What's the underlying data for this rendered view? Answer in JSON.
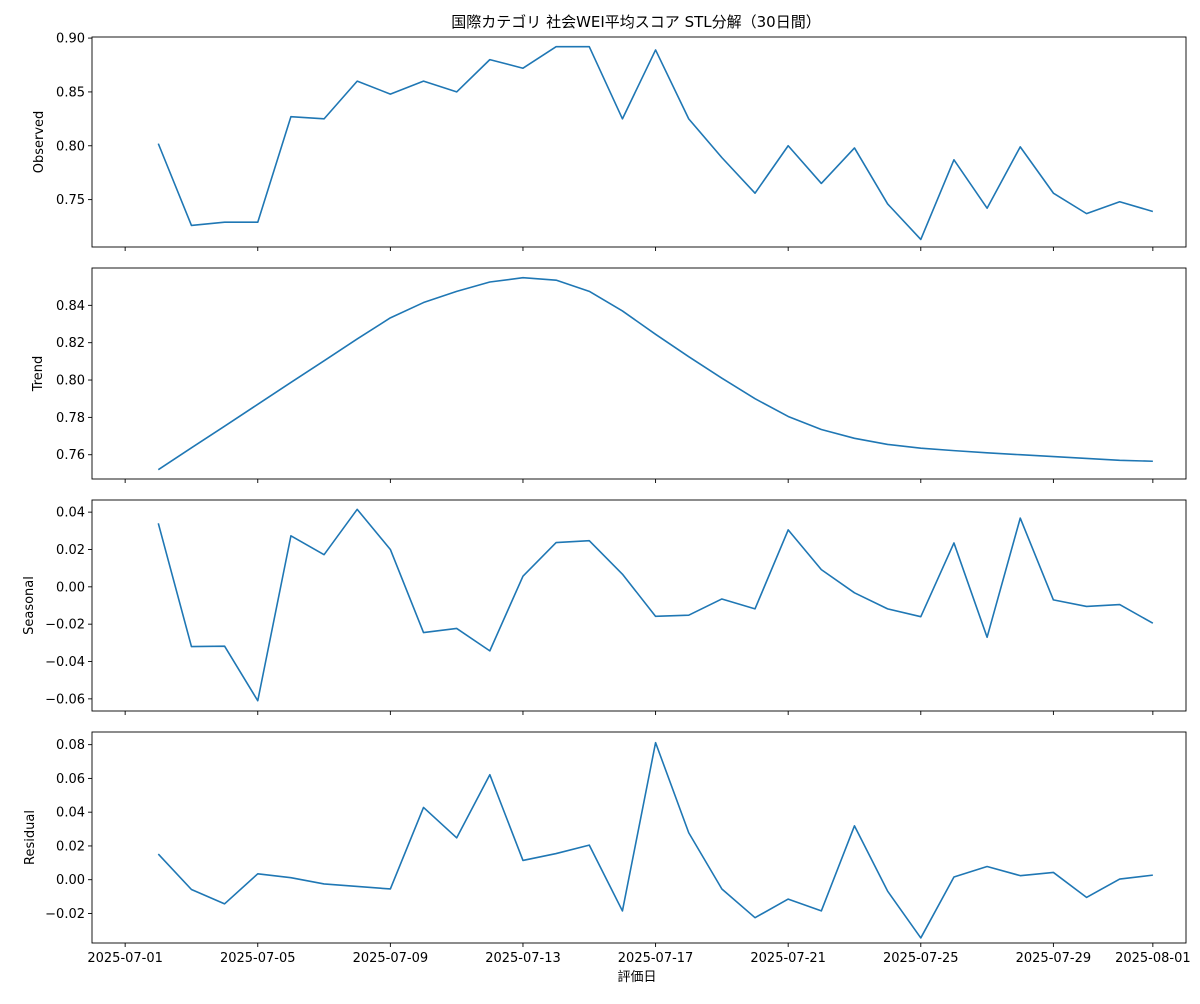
{
  "chart_data": {
    "type": "line",
    "title": "国際カテゴリ 社会WEI平均スコア STL分解（30日間）",
    "xlabel": "評価日",
    "line_color": "#1f77b4",
    "x": [
      "2025-07-02",
      "2025-07-03",
      "2025-07-04",
      "2025-07-05",
      "2025-07-06",
      "2025-07-07",
      "2025-07-08",
      "2025-07-09",
      "2025-07-10",
      "2025-07-11",
      "2025-07-12",
      "2025-07-13",
      "2025-07-14",
      "2025-07-15",
      "2025-07-16",
      "2025-07-17",
      "2025-07-18",
      "2025-07-19",
      "2025-07-20",
      "2025-07-21",
      "2025-07-22",
      "2025-07-23",
      "2025-07-24",
      "2025-07-25",
      "2025-07-26",
      "2025-07-27",
      "2025-07-28",
      "2025-07-29",
      "2025-07-30",
      "2025-07-31",
      "2025-08-01"
    ],
    "x_ticks": [
      "2025-07-01",
      "2025-07-05",
      "2025-07-09",
      "2025-07-13",
      "2025-07-17",
      "2025-07-21",
      "2025-07-25",
      "2025-07-29",
      "2025-08-01"
    ],
    "xlim": [
      "2025-06-30",
      "2025-08-02"
    ],
    "panels": [
      {
        "ylabel": "Observed",
        "ylim": [
          0.706,
          0.901
        ],
        "y_ticks": [
          "0.75",
          "0.80",
          "0.85",
          "0.90"
        ],
        "values": [
          0.802,
          0.726,
          0.729,
          0.729,
          0.827,
          0.825,
          0.86,
          0.848,
          0.86,
          0.85,
          0.88,
          0.872,
          0.892,
          0.892,
          0.825,
          0.889,
          0.825,
          0.789,
          0.756,
          0.8,
          0.765,
          0.798,
          0.746,
          0.713,
          0.787,
          0.742,
          0.799,
          0.756,
          0.737,
          0.748,
          0.739
        ]
      },
      {
        "ylabel": "Trend",
        "ylim": [
          0.747,
          0.86
        ],
        "y_ticks": [
          "0.76",
          "0.78",
          "0.80",
          "0.82",
          "0.84"
        ],
        "values": [
          0.752,
          0.7637,
          0.7753,
          0.787,
          0.7987,
          0.8103,
          0.822,
          0.8333,
          0.8415,
          0.8475,
          0.8525,
          0.8548,
          0.8535,
          0.8475,
          0.837,
          0.8245,
          0.8125,
          0.801,
          0.79,
          0.7805,
          0.7735,
          0.7688,
          0.7655,
          0.7635,
          0.7622,
          0.761,
          0.76,
          0.759,
          0.758,
          0.757,
          0.7565
        ]
      },
      {
        "ylabel": "Seasonal",
        "ylim": [
          -0.0665,
          0.0465
        ],
        "y_ticks": [
          "0.04",
          "0.02",
          "0.00",
          "−0.02",
          "−0.04",
          "−0.06"
        ],
        "values": [
          0.034,
          -0.032,
          -0.0318,
          -0.061,
          0.0273,
          0.0172,
          0.0415,
          0.02,
          -0.0245,
          -0.0223,
          -0.0343,
          0.0057,
          0.0237,
          0.0247,
          0.0068,
          -0.0158,
          -0.0152,
          -0.0065,
          -0.0118,
          0.0305,
          0.0092,
          -0.0032,
          -0.0118,
          -0.016,
          0.0235,
          -0.027,
          0.0368,
          -0.007,
          -0.0105,
          -0.0095,
          -0.0195
        ]
      },
      {
        "ylabel": "Residual",
        "ylim": [
          -0.0375,
          0.0875
        ],
        "y_ticks": [
          "0.08",
          "0.06",
          "0.04",
          "0.02",
          "0.00",
          "−0.02"
        ],
        "values": [
          0.0152,
          -0.0058,
          -0.0143,
          0.0035,
          0.0012,
          -0.0025,
          -0.004,
          -0.0055,
          0.0428,
          0.0248,
          0.0622,
          0.0114,
          0.0155,
          0.0205,
          -0.0185,
          0.0812,
          0.0278,
          -0.0055,
          -0.0225,
          -0.0115,
          -0.0185,
          0.0319,
          -0.0068,
          -0.0345,
          0.0016,
          0.0078,
          0.0024,
          0.0043,
          -0.0105,
          0.0004,
          0.0027
        ]
      }
    ],
    "grid": false,
    "legend": "none"
  }
}
